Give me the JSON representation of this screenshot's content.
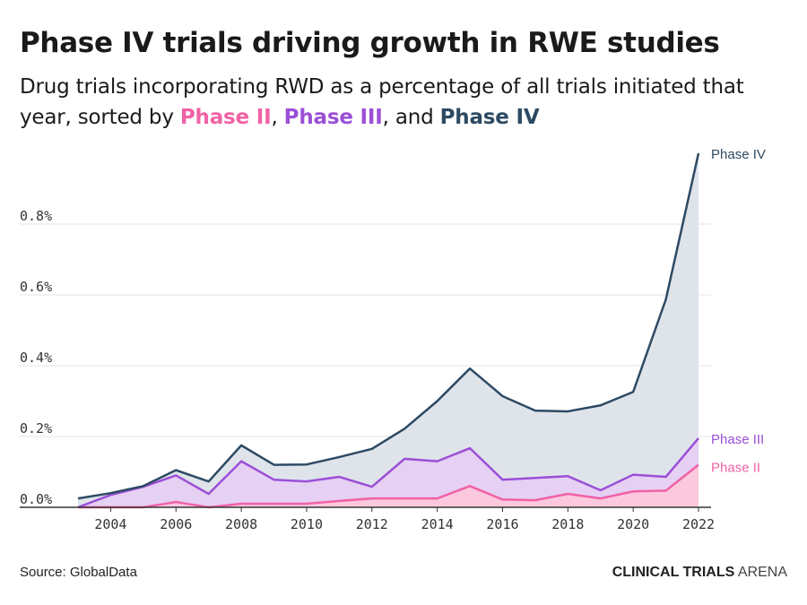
{
  "title": "Phase IV trials driving growth in RWE studies",
  "subtitle_pre": "Drug trials incorporating RWD as a percentage of all trials initiated that year, sorted by ",
  "subtitle_sep1": ", ",
  "subtitle_sep2": ", and ",
  "source": "Source: GlobalData",
  "brand": {
    "bold": "CLINICAL TRIALS",
    "light": "ARENA"
  },
  "colors": {
    "phase2": "#f062a5",
    "phase3": "#9b4fd6",
    "phase4": "#2d4a63"
  },
  "chart_data": {
    "type": "area",
    "x": [
      2003,
      2004,
      2005,
      2006,
      2007,
      2008,
      2009,
      2010,
      2011,
      2012,
      2013,
      2014,
      2015,
      2016,
      2017,
      2018,
      2019,
      2020,
      2021,
      2022
    ],
    "xticks": [
      "2004",
      "2006",
      "2008",
      "2010",
      "2012",
      "2014",
      "2016",
      "2018",
      "2020",
      "2022"
    ],
    "yticks": [
      "0.0%",
      "0.2%",
      "0.4%",
      "0.6%",
      "0.8%"
    ],
    "ylim": [
      0,
      1.0
    ],
    "grid": true,
    "series": [
      {
        "name": "Phase IV",
        "color": "#2d4a63",
        "fill": "#dfe4eb",
        "values": [
          0.025,
          0.04,
          0.06,
          0.105,
          0.073,
          0.175,
          0.12,
          0.121,
          0.142,
          0.165,
          0.222,
          0.3,
          0.392,
          0.314,
          0.273,
          0.271,
          0.288,
          0.326,
          0.587,
          1.0
        ]
      },
      {
        "name": "Phase III",
        "color": "#9b4fd6",
        "fill": "#e6d0f3",
        "values": [
          0,
          0.035,
          0.058,
          0.09,
          0.038,
          0.13,
          0.078,
          0.073,
          0.086,
          0.058,
          0.137,
          0.13,
          0.167,
          0.078,
          0.083,
          0.088,
          0.048,
          0.092,
          0.086,
          0.195
        ]
      },
      {
        "name": "Phase II",
        "color": "#f062a5",
        "fill": "#fcc8de",
        "values": [
          0,
          0,
          0,
          0.015,
          0,
          0.01,
          0.01,
          0.01,
          0.018,
          0.025,
          0.025,
          0.025,
          0.06,
          0.022,
          0.02,
          0.038,
          0.025,
          0.045,
          0.047,
          0.12
        ]
      }
    ]
  }
}
